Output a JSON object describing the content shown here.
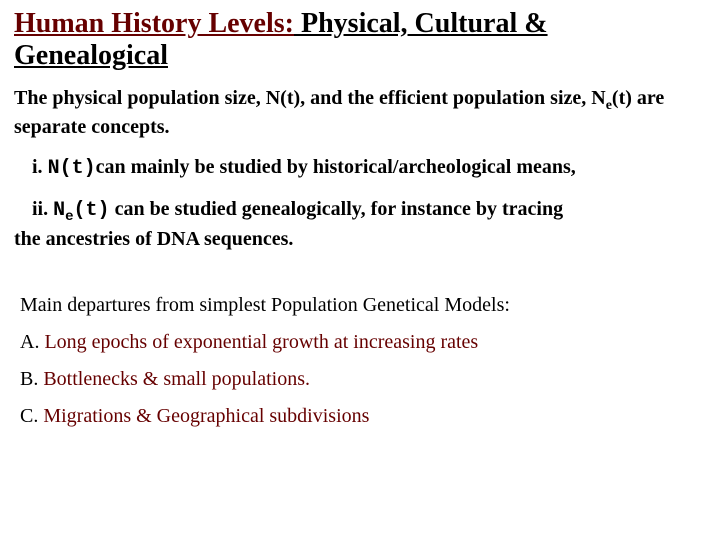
{
  "colors": {
    "title_red": "#660000",
    "text_black": "#000000",
    "departure_red": "#660000",
    "background": "#ffffff"
  },
  "typography": {
    "title_fontsize": 28,
    "body_fontsize": 20,
    "font_family_serif": "Times New Roman",
    "font_family_mono": "Courier New"
  },
  "title": {
    "part_red": "Human History Levels:",
    "part_black": " Physical, Cultural & Genealogical"
  },
  "intro": {
    "pre": "The physical population size, N(t), and the efficient population size, N",
    "sub": "e",
    "post": "(t) are separate concepts."
  },
  "point_i": {
    "num": "i. ",
    "code": "N(t)",
    "rest": "can mainly be studied by historical/archeological means,"
  },
  "point_ii": {
    "num": "ii. ",
    "code_pre": "N",
    "code_sub": "e",
    "code_post": "(t)",
    "rest_a": " can be studied genealogically, for instance by tracing",
    "rest_b": "the ancestries of DNA sequences."
  },
  "departures": {
    "heading": "Main departures from simplest Population Genetical Models:",
    "items": [
      {
        "label": "A. ",
        "text": "Long epochs of exponential growth at increasing rates"
      },
      {
        "label": "B. ",
        "text": "Bottlenecks & small populations."
      },
      {
        "label": "C. ",
        "text": "Migrations & Geographical subdivisions"
      }
    ]
  }
}
